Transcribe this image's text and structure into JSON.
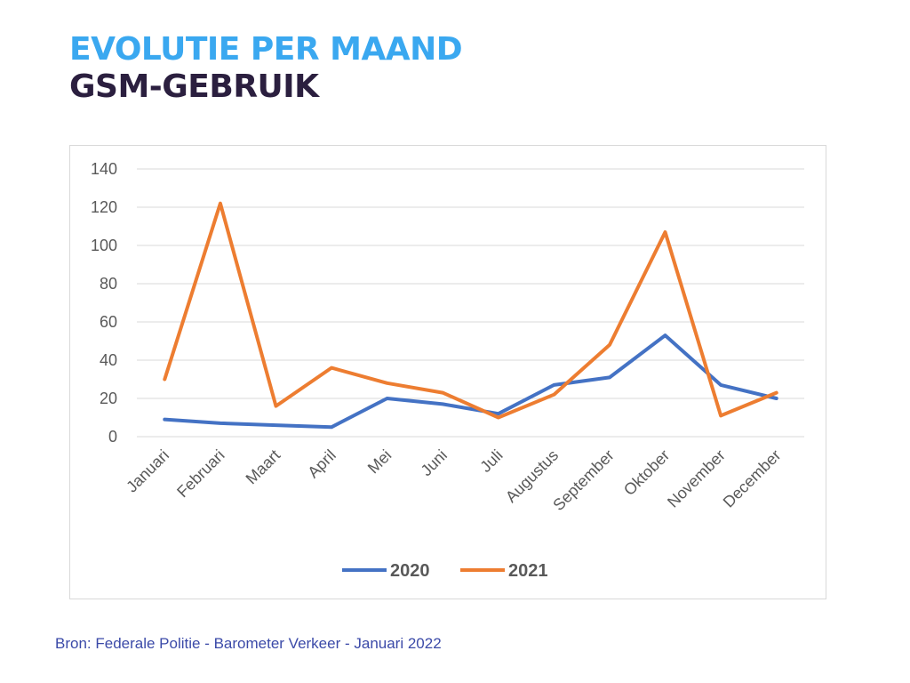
{
  "title": {
    "line1": "EVOLUTIE PER MAAND",
    "line2": "GSM-GEBRUIK"
  },
  "colors": {
    "title_line1": "#3aa8f0",
    "title_line2": "#2b1f3f",
    "series_2020": "#4472c4",
    "series_2021": "#ed7d31",
    "source_text": "#3b4aa8"
  },
  "chart_data": {
    "type": "line",
    "title": "",
    "xlabel": "",
    "ylabel": "",
    "ylim": [
      0,
      140
    ],
    "yticks": [
      "0",
      "20",
      "40",
      "60",
      "80",
      "100",
      "120",
      "140"
    ],
    "grid": true,
    "legend": "bottom-center",
    "categories": [
      "Januari",
      "Februari",
      "Maart",
      "April",
      "Mei",
      "Juni",
      "Juli",
      "Augustus",
      "September",
      "Oktober",
      "November",
      "December"
    ],
    "series": [
      {
        "name": "2020",
        "color": "#4472c4",
        "values": [
          9,
          7,
          6,
          5,
          20,
          17,
          12,
          27,
          31,
          53,
          27,
          20
        ]
      },
      {
        "name": "2021",
        "color": "#ed7d31",
        "values": [
          30,
          122,
          16,
          36,
          28,
          23,
          10,
          22,
          48,
          107,
          11,
          23
        ]
      }
    ]
  },
  "source": "Bron: Federale Politie - Barometer Verkeer - Januari 2022"
}
